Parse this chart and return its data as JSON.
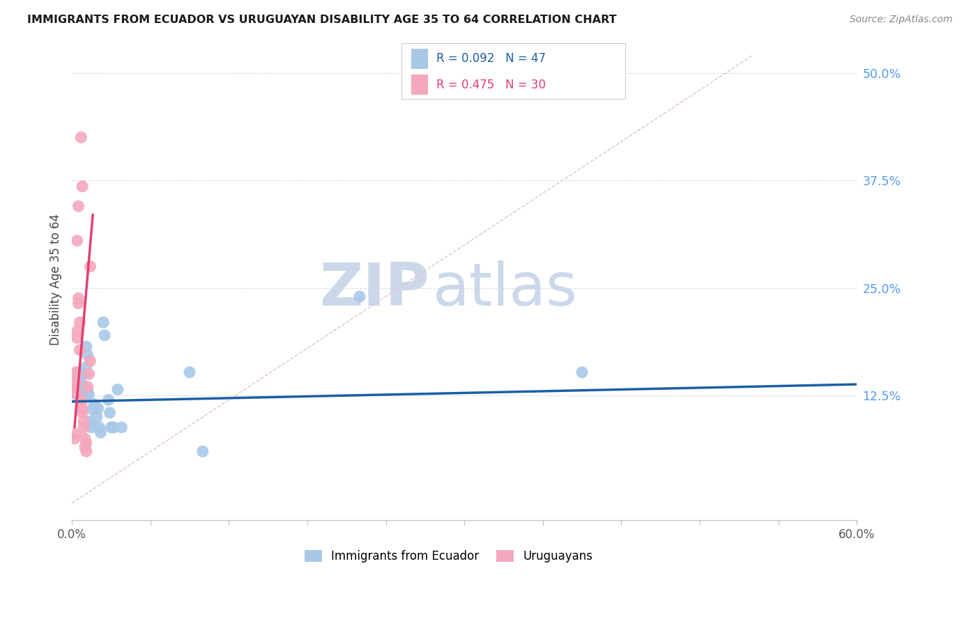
{
  "title": "IMMIGRANTS FROM ECUADOR VS URUGUAYAN DISABILITY AGE 35 TO 64 CORRELATION CHART",
  "source": "Source: ZipAtlas.com",
  "ylabel": "Disability Age 35 to 64",
  "xlim": [
    0.0,
    0.6
  ],
  "ylim": [
    -0.02,
    0.54
  ],
  "yticks": [
    0.125,
    0.25,
    0.375,
    0.5
  ],
  "ytick_labels": [
    "12.5%",
    "25.0%",
    "37.5%",
    "50.0%"
  ],
  "xticks": [
    0.0,
    0.06,
    0.12,
    0.18,
    0.24,
    0.3,
    0.36,
    0.42,
    0.48,
    0.54,
    0.6
  ],
  "xtick_labels": [
    "0.0%",
    "",
    "",
    "",
    "",
    "",
    "",
    "",
    "",
    "",
    "60.0%"
  ],
  "legend_label_blue": "Immigrants from Ecuador",
  "legend_label_pink": "Uruguayans",
  "blue_color": "#a8c8e8",
  "blue_line_color": "#1a5fa8",
  "pink_color": "#f4a8bc",
  "pink_line_color": "#e04070",
  "blue_scatter": [
    [
      0.002,
      0.135
    ],
    [
      0.003,
      0.132
    ],
    [
      0.003,
      0.128
    ],
    [
      0.004,
      0.14
    ],
    [
      0.004,
      0.125
    ],
    [
      0.004,
      0.148
    ],
    [
      0.005,
      0.152
    ],
    [
      0.005,
      0.125
    ],
    [
      0.005,
      0.143
    ],
    [
      0.005,
      0.128
    ],
    [
      0.006,
      0.133
    ],
    [
      0.006,
      0.138
    ],
    [
      0.006,
      0.12
    ],
    [
      0.007,
      0.148
    ],
    [
      0.007,
      0.118
    ],
    [
      0.007,
      0.128
    ],
    [
      0.008,
      0.132
    ],
    [
      0.008,
      0.138
    ],
    [
      0.008,
      0.12
    ],
    [
      0.009,
      0.15
    ],
    [
      0.009,
      0.13
    ],
    [
      0.01,
      0.125
    ],
    [
      0.011,
      0.182
    ],
    [
      0.011,
      0.158
    ],
    [
      0.012,
      0.172
    ],
    [
      0.012,
      0.13
    ],
    [
      0.013,
      0.126
    ],
    [
      0.014,
      0.095
    ],
    [
      0.015,
      0.088
    ],
    [
      0.016,
      0.109
    ],
    [
      0.017,
      0.115
    ],
    [
      0.019,
      0.1
    ],
    [
      0.02,
      0.11
    ],
    [
      0.021,
      0.088
    ],
    [
      0.022,
      0.082
    ],
    [
      0.024,
      0.21
    ],
    [
      0.025,
      0.195
    ],
    [
      0.028,
      0.12
    ],
    [
      0.029,
      0.105
    ],
    [
      0.03,
      0.088
    ],
    [
      0.032,
      0.088
    ],
    [
      0.035,
      0.132
    ],
    [
      0.038,
      0.088
    ],
    [
      0.09,
      0.152
    ],
    [
      0.1,
      0.06
    ],
    [
      0.22,
      0.24
    ],
    [
      0.39,
      0.152
    ]
  ],
  "pink_scatter": [
    [
      0.002,
      0.132
    ],
    [
      0.003,
      0.128
    ],
    [
      0.003,
      0.142
    ],
    [
      0.003,
      0.152
    ],
    [
      0.004,
      0.192
    ],
    [
      0.004,
      0.2
    ],
    [
      0.005,
      0.238
    ],
    [
      0.005,
      0.232
    ],
    [
      0.006,
      0.21
    ],
    [
      0.006,
      0.178
    ],
    [
      0.007,
      0.12
    ],
    [
      0.007,
      0.115
    ],
    [
      0.008,
      0.11
    ],
    [
      0.008,
      0.105
    ],
    [
      0.009,
      0.095
    ],
    [
      0.009,
      0.088
    ],
    [
      0.01,
      0.075
    ],
    [
      0.01,
      0.065
    ],
    [
      0.011,
      0.06
    ],
    [
      0.011,
      0.07
    ],
    [
      0.012,
      0.135
    ],
    [
      0.013,
      0.15
    ],
    [
      0.014,
      0.275
    ],
    [
      0.014,
      0.165
    ],
    [
      0.007,
      0.425
    ],
    [
      0.008,
      0.368
    ],
    [
      0.004,
      0.305
    ],
    [
      0.005,
      0.345
    ],
    [
      0.002,
      0.075
    ],
    [
      0.003,
      0.08
    ]
  ],
  "blue_trendline_x": [
    0.0,
    0.6
  ],
  "blue_trendline_y": [
    0.118,
    0.138
  ],
  "pink_trendline_x": [
    0.002,
    0.016
  ],
  "pink_trendline_y": [
    0.088,
    0.335
  ],
  "ref_line_x": [
    0.0,
    0.52
  ],
  "ref_line_y": [
    0.0,
    0.52
  ],
  "background_color": "#ffffff",
  "grid_color": "#d8dfe8",
  "watermark_zip": "ZIP",
  "watermark_atlas": "atlas",
  "watermark_color": "#ccd8ea"
}
